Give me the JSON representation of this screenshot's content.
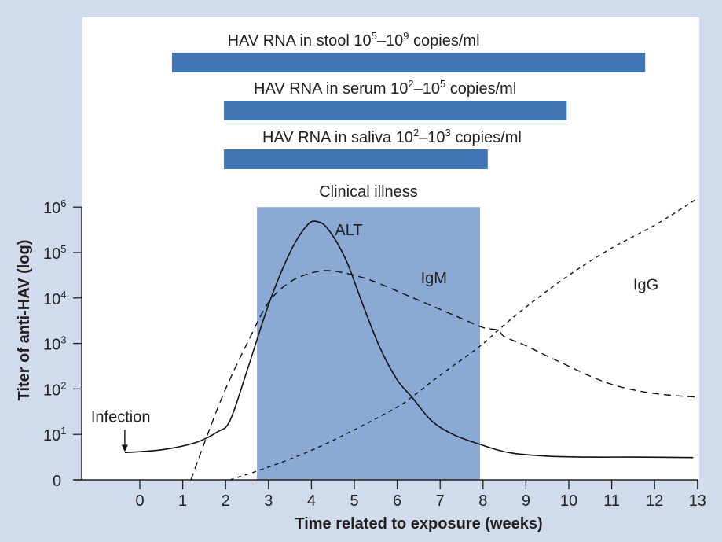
{
  "chart_data": {
    "type": "line",
    "title": "",
    "xlabel": "Time related to exposure (weeks)",
    "ylabel": "Titer of anti-HAV (log)",
    "xlim": [
      -1.35,
      13.05
    ],
    "ylim": [
      0,
      6
    ],
    "x_ticks": [
      0,
      1,
      2,
      3,
      4,
      5,
      6,
      7,
      8,
      9,
      10,
      11,
      12,
      13
    ],
    "y_ticks": [
      {
        "value": 0,
        "base": "0",
        "exp": ""
      },
      {
        "value": 1,
        "base": "10",
        "exp": "1"
      },
      {
        "value": 2,
        "base": "10",
        "exp": "2"
      },
      {
        "value": 3,
        "base": "10",
        "exp": "3"
      },
      {
        "value": 4,
        "base": "10",
        "exp": "4"
      },
      {
        "value": 5,
        "base": "10",
        "exp": "5"
      },
      {
        "value": 6,
        "base": "10",
        "exp": "6"
      }
    ],
    "grid": false,
    "shaded_region": {
      "label": "Clinical illness",
      "x_start": 2.73,
      "x_end": 7.93,
      "y_top": 6,
      "color": "#8aa9d4"
    },
    "range_bars": [
      {
        "name": "stool",
        "label_prefix": "HAV RNA in stool ",
        "lo_exp": "5",
        "hi_exp": "9",
        "label_suffix": " copies/ml",
        "x_start": 0.75,
        "x_end": 11.78,
        "color": "#4174b4"
      },
      {
        "name": "serum",
        "label_prefix": "HAV RNA in serum ",
        "lo_exp": "2",
        "hi_exp": "5",
        "label_suffix": " copies/ml",
        "x_start": 1.96,
        "x_end": 9.95,
        "color": "#4174b4"
      },
      {
        "name": "saliva",
        "label_prefix": "HAV RNA in saliva ",
        "lo_exp": "2",
        "hi_exp": "3",
        "label_suffix": " copies/ml",
        "x_start": 1.96,
        "x_end": 8.11,
        "color": "#4174b4"
      }
    ],
    "series": [
      {
        "name": "ALT",
        "style": "solid",
        "points": [
          [
            -0.35,
            0.6
          ],
          [
            0.5,
            0.66
          ],
          [
            1.3,
            0.82
          ],
          [
            1.8,
            1.05
          ],
          [
            2.1,
            1.3
          ],
          [
            2.5,
            2.4
          ],
          [
            3.0,
            3.85
          ],
          [
            3.5,
            5.0
          ],
          [
            3.9,
            5.6
          ],
          [
            4.14,
            5.68
          ],
          [
            4.4,
            5.5
          ],
          [
            4.8,
            4.85
          ],
          [
            5.2,
            3.85
          ],
          [
            5.6,
            2.9
          ],
          [
            6.0,
            2.2
          ],
          [
            6.34,
            1.82
          ],
          [
            6.8,
            1.3
          ],
          [
            7.3,
            1.0
          ],
          [
            7.93,
            0.78
          ],
          [
            8.6,
            0.6
          ],
          [
            9.5,
            0.52
          ],
          [
            10.5,
            0.5
          ],
          [
            11.5,
            0.5
          ],
          [
            12.9,
            0.49
          ]
        ]
      },
      {
        "name": "IgM",
        "style": "dashed",
        "points": [
          [
            1.19,
            0
          ],
          [
            1.6,
            1.05
          ],
          [
            2.0,
            2.0
          ],
          [
            2.5,
            3.0
          ],
          [
            3.0,
            3.9
          ],
          [
            3.5,
            4.35
          ],
          [
            4.0,
            4.55
          ],
          [
            4.43,
            4.6
          ],
          [
            5.0,
            4.5
          ],
          [
            5.5,
            4.35
          ],
          [
            6.0,
            4.15
          ],
          [
            6.5,
            3.95
          ],
          [
            7.0,
            3.75
          ],
          [
            7.5,
            3.55
          ],
          [
            8.0,
            3.35
          ],
          [
            8.35,
            3.29
          ],
          [
            8.5,
            3.15
          ],
          [
            9.0,
            2.95
          ],
          [
            9.5,
            2.72
          ],
          [
            10.0,
            2.5
          ],
          [
            10.5,
            2.28
          ],
          [
            11.0,
            2.1
          ],
          [
            11.5,
            1.98
          ],
          [
            12.0,
            1.9
          ],
          [
            12.5,
            1.85
          ],
          [
            13.0,
            1.82
          ]
        ]
      },
      {
        "name": "IgG",
        "style": "dotted",
        "points": [
          [
            2.1,
            0
          ],
          [
            3.0,
            0.28
          ],
          [
            4.0,
            0.65
          ],
          [
            5.0,
            1.1
          ],
          [
            6.0,
            1.6
          ],
          [
            6.34,
            1.82
          ],
          [
            7.0,
            2.3
          ],
          [
            7.93,
            2.94
          ],
          [
            8.35,
            3.29
          ],
          [
            9.0,
            3.8
          ],
          [
            10.0,
            4.5
          ],
          [
            11.0,
            5.1
          ],
          [
            12.0,
            5.6
          ],
          [
            12.95,
            6.16
          ]
        ]
      }
    ],
    "curve_labels": [
      {
        "series": "ALT",
        "text": "ALT",
        "x": 4.55,
        "y": 5.5
      },
      {
        "series": "IgM",
        "text": "IgM",
        "x": 6.55,
        "y": 4.45
      },
      {
        "series": "IgG",
        "text": "IgG",
        "x": 11.5,
        "y": 4.3
      }
    ],
    "annotations": [
      {
        "text": "Infection",
        "x": -0.35,
        "y": 0.6,
        "arrow": true
      }
    ]
  }
}
